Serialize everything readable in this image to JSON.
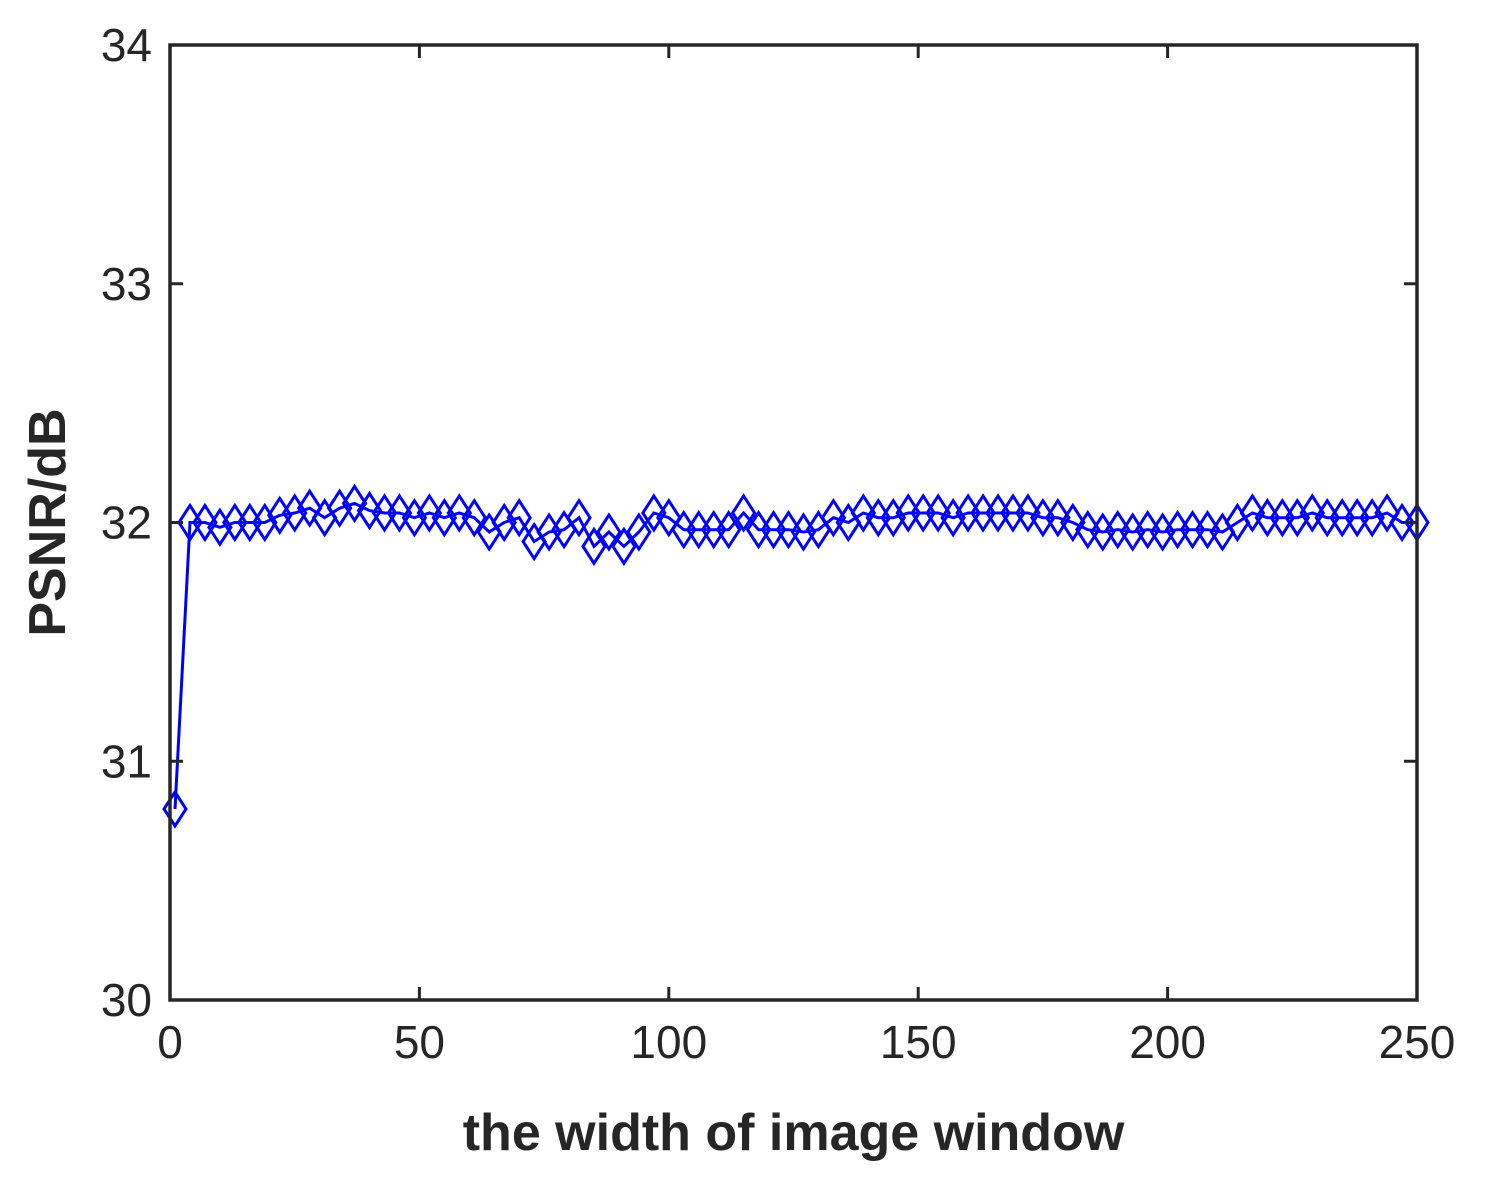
{
  "chart_data": {
    "type": "line",
    "title": "",
    "xlabel": "the width of image window",
    "ylabel": "PSNR/dB",
    "xlim": [
      0,
      250
    ],
    "ylim": [
      30,
      34
    ],
    "xticks": [
      0,
      50,
      100,
      150,
      200,
      250
    ],
    "yticks": [
      30,
      31,
      32,
      33,
      34
    ],
    "xtick_labels": [
      "0",
      "50",
      "100",
      "150",
      "200",
      "250"
    ],
    "ytick_labels": [
      "30",
      "31",
      "32",
      "33",
      "34"
    ],
    "grid": false,
    "box": true,
    "series": [
      {
        "marker": "diamond",
        "color": "#0000ff",
        "x": [
          1,
          4,
          7,
          10,
          13,
          16,
          19,
          22,
          25,
          28,
          31,
          34,
          37,
          40,
          43,
          46,
          49,
          52,
          55,
          58,
          61,
          64,
          67,
          70,
          73,
          76,
          79,
          82,
          85,
          88,
          91,
          94,
          97,
          100,
          103,
          106,
          109,
          112,
          115,
          118,
          121,
          124,
          127,
          130,
          133,
          136,
          139,
          142,
          145,
          148,
          151,
          154,
          157,
          160,
          163,
          166,
          169,
          172,
          175,
          178,
          181,
          184,
          187,
          190,
          193,
          196,
          199,
          202,
          205,
          208,
          211,
          214,
          217,
          220,
          223,
          226,
          229,
          232,
          235,
          238,
          241,
          244,
          247,
          250
        ],
        "y": [
          30.8,
          32.0,
          32.0,
          31.98,
          32.0,
          32.0,
          32.0,
          32.03,
          32.04,
          32.06,
          32.02,
          32.06,
          32.08,
          32.05,
          32.04,
          32.04,
          32.02,
          32.04,
          32.02,
          32.04,
          32.02,
          31.96,
          32.0,
          32.02,
          31.92,
          31.96,
          31.97,
          32.02,
          31.9,
          31.96,
          31.9,
          31.96,
          32.04,
          32.02,
          31.97,
          31.97,
          31.97,
          31.97,
          32.04,
          31.97,
          31.97,
          31.97,
          31.96,
          31.97,
          32.02,
          32.0,
          32.04,
          32.02,
          32.02,
          32.04,
          32.04,
          32.04,
          32.02,
          32.04,
          32.04,
          32.04,
          32.04,
          32.04,
          32.02,
          32.02,
          32.0,
          31.97,
          31.96,
          31.97,
          31.96,
          31.97,
          31.96,
          31.97,
          31.97,
          31.97,
          31.96,
          32.0,
          32.04,
          32.02,
          32.02,
          32.02,
          32.04,
          32.02,
          32.02,
          32.02,
          32.02,
          32.04,
          32.0,
          32.0
        ]
      }
    ]
  }
}
